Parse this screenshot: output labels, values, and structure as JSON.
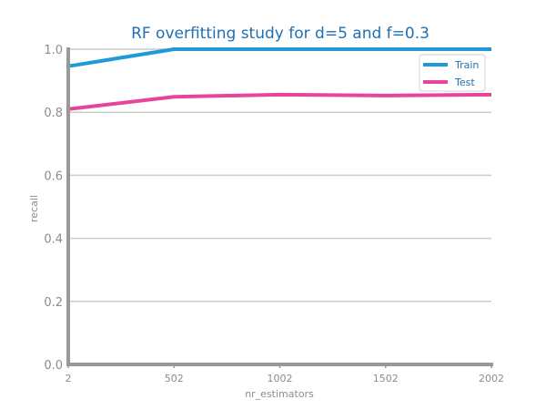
{
  "chart_data": {
    "type": "line",
    "title": "RF overfitting study for d=5 and f=0.3",
    "xlabel": "nr_estimators",
    "ylabel": "recall",
    "x": [
      2,
      502,
      1002,
      1502,
      2002
    ],
    "x_tick_labels": [
      "2",
      "502",
      "1002",
      "1502",
      "2002"
    ],
    "y_tick_labels": [
      "0.0",
      "0.2",
      "0.4",
      "0.6",
      "0.8",
      "1.0"
    ],
    "xlim": [
      2,
      2002
    ],
    "ylim": [
      0.0,
      1.0
    ],
    "grid": "horizontal",
    "legend_position": "top-right",
    "series": [
      {
        "name": "Train",
        "color": "#1f9ad6",
        "values": [
          0.946,
          1.0,
          1.0,
          1.0,
          1.0
        ]
      },
      {
        "name": "Test",
        "color": "#e8449a",
        "values": [
          0.81,
          0.849,
          0.856,
          0.853,
          0.856
        ]
      }
    ]
  }
}
